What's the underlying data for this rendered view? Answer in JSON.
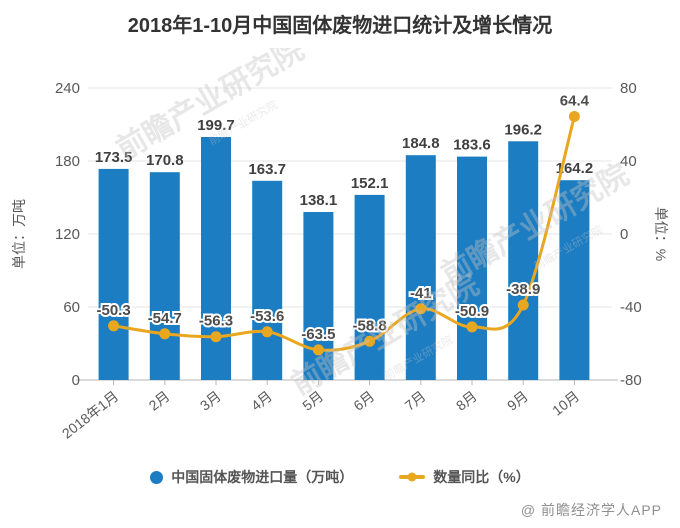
{
  "title": "2018年1-10月中国固体废物进口统计及增长情况",
  "watermark": {
    "diagonal_text": "前瞻产业研究院",
    "credit": "@ 前瞻经济学人APP"
  },
  "chart_data": {
    "type": "bar",
    "subtype": "bar+line combo with dual y-axes",
    "title": "2018年1-10月中国固体废物进口统计及增长情况",
    "categories": [
      "2018年1月",
      "2月",
      "3月",
      "4月",
      "5月",
      "6月",
      "7月",
      "8月",
      "9月",
      "10月"
    ],
    "series": [
      {
        "name": "中国固体废物进口量（万吨）",
        "kind": "bar",
        "axis": "left",
        "color": "#1c7dc2",
        "values": [
          173.5,
          170.8,
          199.7,
          163.7,
          138.1,
          152.1,
          184.8,
          183.6,
          196.2,
          164.2
        ]
      },
      {
        "name": "数量同比（%）",
        "kind": "line",
        "axis": "right",
        "color": "#e9a71f",
        "values": [
          -50.3,
          -54.7,
          -56.3,
          -53.6,
          -63.5,
          -58.8,
          -41,
          -50.9,
          -38.9,
          64.4
        ]
      }
    ],
    "left_axis": {
      "label": "单位：万吨",
      "min": 0,
      "max": 240,
      "ticks": [
        0,
        60,
        120,
        180,
        240
      ]
    },
    "right_axis": {
      "label": "单位：%",
      "min": -80,
      "max": 80,
      "ticks": [
        -80,
        -40,
        0,
        40,
        80
      ]
    },
    "grid": true,
    "legend_position": "bottom"
  },
  "colors": {
    "bar": "#1c7dc2",
    "line": "#e9a71f",
    "title_text": "#333333",
    "axis_text": "#595959",
    "grid_line": "#e4e4e4",
    "axis_line": "#b5b5b5",
    "data_label": "#404040",
    "line_label": "#4d4d4d",
    "watermark": "#c4c4c4",
    "credit_text": "#8f8f8f"
  }
}
